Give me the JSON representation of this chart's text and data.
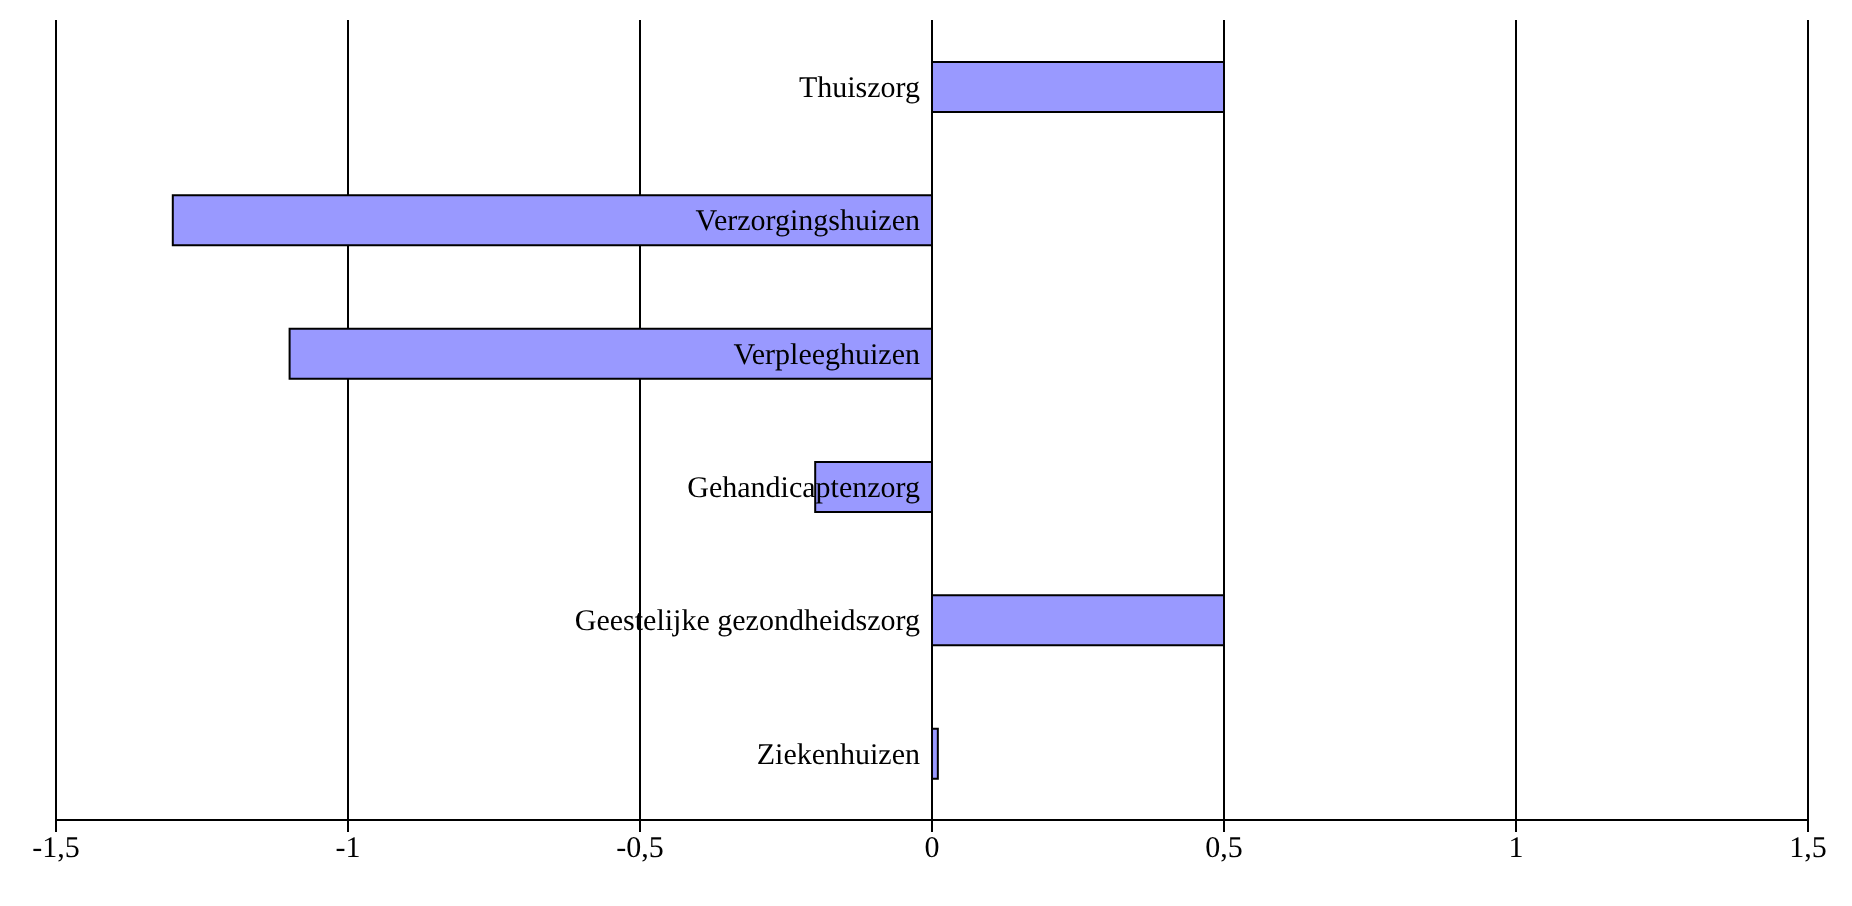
{
  "chart_data": {
    "type": "bar",
    "orientation": "horizontal",
    "categories": [
      "Thuiszorg",
      "Verzorgingshuizen",
      "Verpleeghuizen",
      "Gehandicaptenzorg",
      "Geestelijke gezondheidszorg",
      "Ziekenhuizen"
    ],
    "values": [
      0.5,
      -1.3,
      -1.1,
      -0.2,
      0.5,
      0.01
    ],
    "color": "#9999ff",
    "xlim": [
      -1.5,
      1.5
    ],
    "xticks": [
      {
        "value": -1.5,
        "label": "-1,5"
      },
      {
        "value": -1,
        "label": "-1"
      },
      {
        "value": -0.5,
        "label": "-0,5"
      },
      {
        "value": 0,
        "label": "0"
      },
      {
        "value": 0.5,
        "label": "0,5"
      },
      {
        "value": 1,
        "label": "1"
      },
      {
        "value": 1.5,
        "label": "1,5"
      }
    ],
    "grid": "x"
  }
}
